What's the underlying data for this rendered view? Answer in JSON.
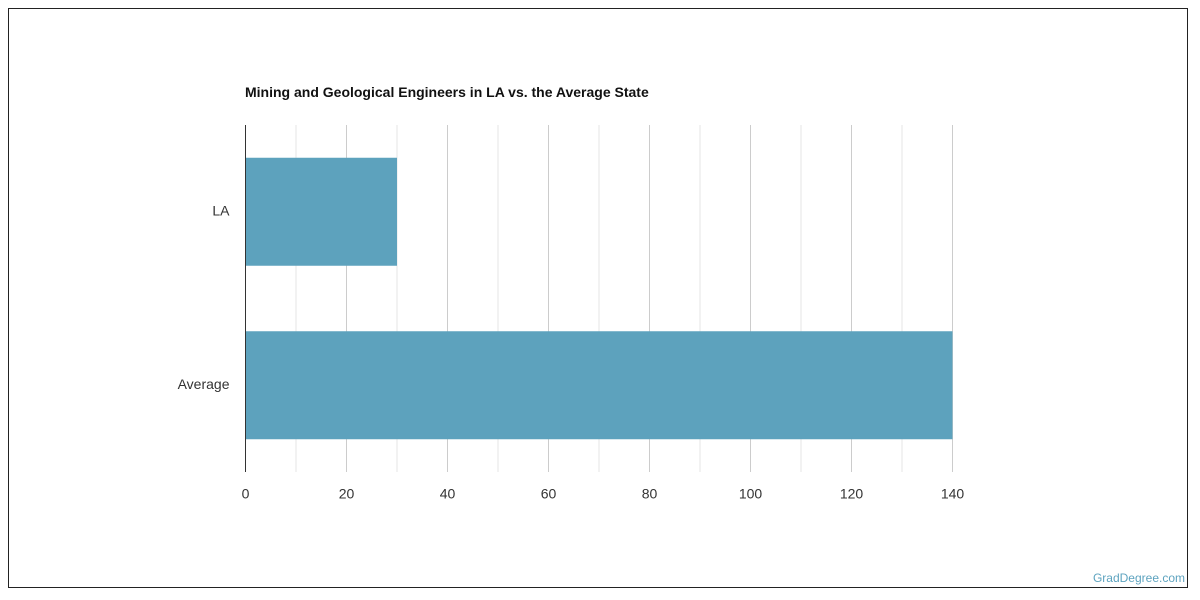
{
  "watermark": "GradDegree.com",
  "colors": {
    "bar": "#5da2bd",
    "grid_major": "#cccccc",
    "grid_minor": "#e6e6e6",
    "axis": "#333333"
  },
  "chart_data": {
    "type": "bar",
    "orientation": "horizontal",
    "title": "Mining and Geological Engineers in LA vs. the Average State",
    "xlabel": "",
    "ylabel": "",
    "categories": [
      "LA",
      "Average"
    ],
    "values": [
      30,
      140
    ],
    "xlim": [
      0,
      140
    ],
    "xticks": [
      0,
      20,
      40,
      60,
      80,
      100,
      120,
      140
    ],
    "grid": true,
    "legend": "none"
  }
}
